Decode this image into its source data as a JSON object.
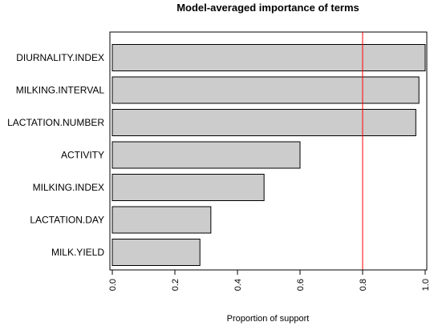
{
  "chart_data": {
    "type": "bar",
    "orientation": "horizontal",
    "title": "Model-averaged importance of terms",
    "xlabel": "Proportion of support",
    "ylabel": "",
    "xlim": [
      0,
      1
    ],
    "xticks": [
      "0.0",
      "0.2",
      "0.4",
      "0.6",
      "0.8",
      "1.0"
    ],
    "categories": [
      "DIURNALITY.INDEX",
      "MILKING.INTERVAL",
      "LACTATION.NUMBER",
      "ACTIVITY",
      "MILKING.INDEX",
      "LACTATION.DAY",
      "MILK.YIELD"
    ],
    "values": [
      1.0,
      0.98,
      0.97,
      0.6,
      0.485,
      0.315,
      0.28
    ],
    "reference_line": {
      "x": 0.8,
      "color": "#ff0000"
    },
    "bar_color": "#cccccc",
    "grid": false,
    "legend": "none"
  }
}
